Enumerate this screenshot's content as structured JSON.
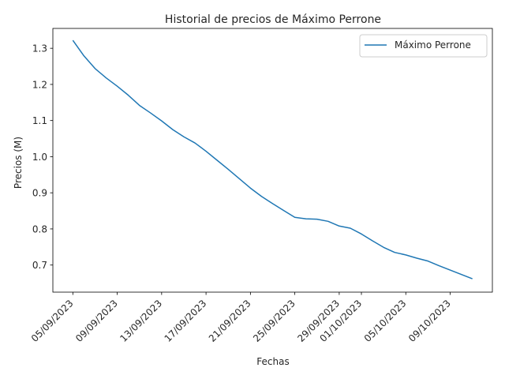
{
  "chart_data": {
    "type": "line",
    "title": "Historial de precios de Máximo Perrone",
    "xlabel": "Fechas",
    "ylabel": "Precios (M)",
    "ylim": [
      0.625,
      1.355
    ],
    "yticks": [
      0.7,
      0.8,
      0.9,
      1.0,
      1.1,
      1.2,
      1.3
    ],
    "ytick_labels": [
      "0.7",
      "0.8",
      "0.9",
      "1.0",
      "1.1",
      "1.2",
      "1.3"
    ],
    "xticks": [
      "2023-09-05",
      "2023-09-09",
      "2023-09-13",
      "2023-09-17",
      "2023-09-21",
      "2023-09-25",
      "2023-09-29",
      "2023-10-01",
      "2023-10-05",
      "2023-10-09"
    ],
    "xtick_labels": [
      "05/09/2023",
      "09/09/2023",
      "13/09/2023",
      "17/09/2023",
      "21/09/2023",
      "25/09/2023",
      "29/09/2023",
      "01/10/2023",
      "05/10/2023",
      "09/10/2023"
    ],
    "legend_position": "top-right",
    "grid": false,
    "series": [
      {
        "name": "Máximo Perrone",
        "color": "#1f77b4",
        "x": [
          "2023-09-05",
          "2023-09-06",
          "2023-09-07",
          "2023-09-08",
          "2023-09-09",
          "2023-09-10",
          "2023-09-11",
          "2023-09-12",
          "2023-09-13",
          "2023-09-14",
          "2023-09-15",
          "2023-09-16",
          "2023-09-17",
          "2023-09-18",
          "2023-09-19",
          "2023-09-20",
          "2023-09-21",
          "2023-09-22",
          "2023-09-23",
          "2023-09-24",
          "2023-09-25",
          "2023-09-26",
          "2023-09-27",
          "2023-09-28",
          "2023-09-29",
          "2023-09-30",
          "2023-10-01",
          "2023-10-02",
          "2023-10-03",
          "2023-10-04",
          "2023-10-05",
          "2023-10-06",
          "2023-10-07",
          "2023-10-08",
          "2023-10-09",
          "2023-10-10",
          "2023-10-11"
        ],
        "y": [
          1.322,
          1.279,
          1.244,
          1.218,
          1.195,
          1.17,
          1.142,
          1.121,
          1.099,
          1.075,
          1.055,
          1.038,
          1.015,
          0.99,
          0.965,
          0.939,
          0.913,
          0.89,
          0.87,
          0.851,
          0.832,
          0.828,
          0.827,
          0.821,
          0.808,
          0.802,
          0.786,
          0.767,
          0.749,
          0.735,
          0.728,
          0.719,
          0.711,
          0.698,
          0.686,
          0.674,
          0.662
        ]
      }
    ]
  }
}
